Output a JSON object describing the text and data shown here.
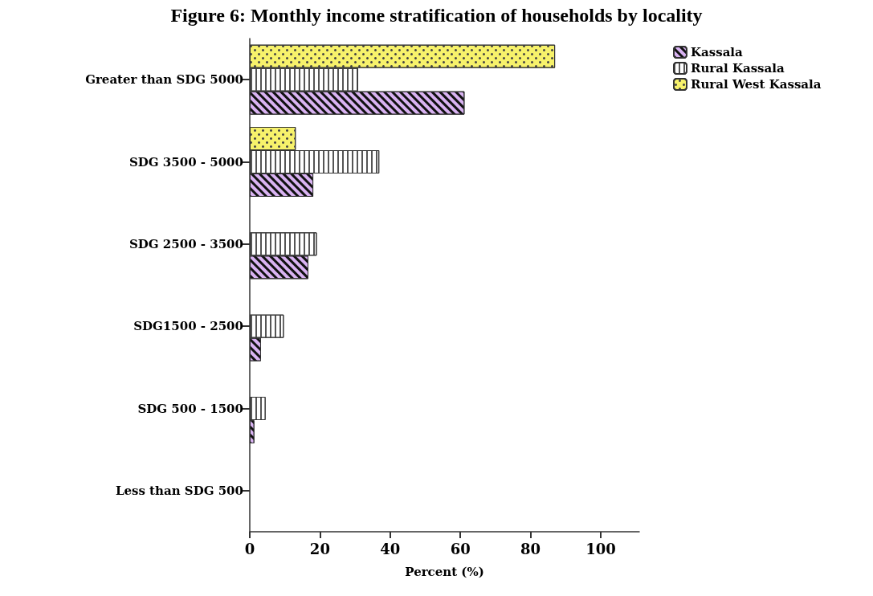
{
  "chart_data": {
    "type": "bar",
    "orientation": "horizontal",
    "title": "Figure 6: Monthly income stratification of households by locality",
    "xlabel": "Percent (%)",
    "categories": [
      "Greater than SDG 5000",
      "SDG 3500 - 5000",
      "SDG 2500 - 3500",
      "SDG1500 - 2500",
      "SDG 500 - 1500",
      "Less than SDG 500"
    ],
    "series": [
      {
        "name": "Rural West Kassala",
        "color": "#f7f26b",
        "values": [
          87.0,
          13.1,
          0,
          0,
          0,
          0
        ]
      },
      {
        "name": "Rural Kassala",
        "color": "#ffffff",
        "values": [
          30.9,
          36.9,
          19.1,
          9.7,
          4.5,
          0
        ]
      },
      {
        "name": "Kassala",
        "color": "#d9b3f2",
        "values": [
          61.2,
          18.1,
          16.7,
          3.2,
          1.3,
          0
        ]
      }
    ],
    "xlim": [
      0,
      111
    ],
    "xticks": [
      0,
      20,
      40,
      60,
      80,
      100
    ],
    "grid": false,
    "legend": "top right"
  }
}
